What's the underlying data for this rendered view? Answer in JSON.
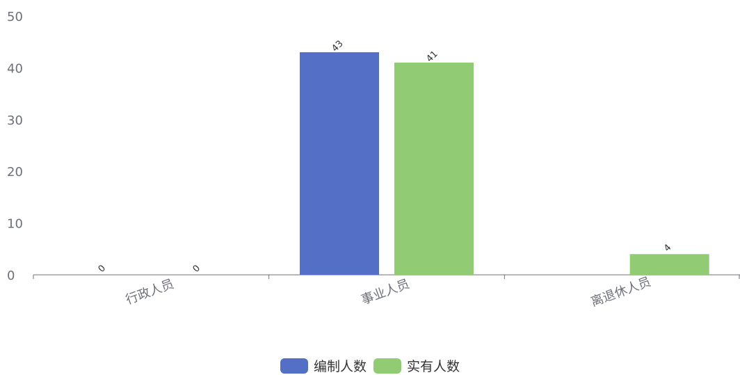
{
  "chart_data": {
    "type": "bar",
    "categories": [
      "行政人员",
      "事业人员",
      "离退休人员"
    ],
    "series": [
      {
        "name": "编制人数",
        "values": [
          0,
          43,
          0
        ],
        "color": "#5470c6"
      },
      {
        "name": "实有人数",
        "values": [
          0,
          41,
          4
        ],
        "color": "#91cc75"
      }
    ],
    "data_labels": [
      [
        "0",
        "43",
        ""
      ],
      [
        "0",
        "41",
        "4"
      ]
    ],
    "ylim": [
      0,
      50
    ],
    "yticks": [
      0,
      10,
      20,
      30,
      40,
      50
    ],
    "title": "",
    "xlabel": "",
    "ylabel": "",
    "grid": false,
    "legend_position": "bottom-center"
  }
}
